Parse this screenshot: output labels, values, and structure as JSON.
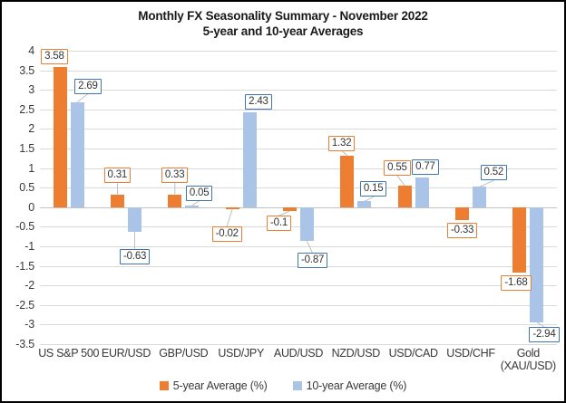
{
  "chart_data": {
    "type": "bar",
    "title": "Monthly FX Seasonality Summary - November 2022",
    "subtitle": "5-year and 10-year Averages",
    "categories": [
      "US S&P 500",
      "EUR/USD",
      "GBP/USD",
      "USD/JPY",
      "AUD/USD",
      "NZD/USD",
      "USD/CAD",
      "USD/CHF",
      "Gold (XAU/USD)"
    ],
    "series": [
      {
        "name": "5-year Average (%)",
        "color": "#ED7D31",
        "label_border_color": "#ED7D31",
        "values": [
          3.58,
          0.31,
          0.33,
          -0.02,
          -0.1,
          1.32,
          0.55,
          -0.33,
          -1.68
        ],
        "labels": [
          "3.58",
          "0.31",
          "0.33",
          "-0.02",
          "-0.1",
          "1.32",
          "0.55",
          "-0.33",
          "-1.68"
        ],
        "label_offsets": [
          {
            "dx": -6,
            "dy": 0,
            "leader": false
          },
          {
            "dx": 0,
            "dy": -10,
            "leader": true
          },
          {
            "dx": 0,
            "dy": -10,
            "leader": true
          },
          {
            "dx": -6,
            "dy": 16,
            "leader": true
          },
          {
            "dx": -12,
            "dy": 2,
            "leader": true
          },
          {
            "dx": -6,
            "dy": -2,
            "leader": true
          },
          {
            "dx": -8,
            "dy": -8,
            "leader": true
          },
          null,
          {
            "dx": -4,
            "dy": 0,
            "leader": false
          }
        ]
      },
      {
        "name": "10-year Average (%)",
        "color": "#A9C4E6",
        "label_border_color": "#3E76B5",
        "values": [
          2.69,
          -0.63,
          0.05,
          2.43,
          -0.87,
          0.15,
          0.77,
          0.52,
          -2.94
        ],
        "labels": [
          "2.69",
          "-0.63",
          "0.05",
          "2.43",
          "-0.87",
          "0.15",
          "0.77",
          "0.52",
          "-2.94"
        ],
        "label_offsets": [
          {
            "dx": 12,
            "dy": -6,
            "leader": true
          },
          {
            "dx": 0,
            "dy": 16,
            "leader": true
          },
          {
            "dx": 8,
            "dy": -2,
            "leader": true
          },
          {
            "dx": 10,
            "dy": 0,
            "leader": false
          },
          {
            "dx": 6,
            "dy": 10,
            "leader": true
          },
          {
            "dx": 10,
            "dy": -2,
            "leader": true
          },
          {
            "dx": 4,
            "dy": 0,
            "leader": false
          },
          {
            "dx": 16,
            "dy": -4,
            "leader": true
          },
          {
            "dx": 8,
            "dy": 2,
            "leader": true
          }
        ]
      }
    ],
    "ylim": [
      -3.5,
      4
    ],
    "ytick_step": 0.5,
    "grid": true,
    "legend_position": "bottom",
    "gridline_color": "#D9D9D9",
    "zero_line_color": "#C2C2C2",
    "leader_line_color": "#BFBFBF",
    "label_text_color": "#333333",
    "background_color": "#FFFFFF",
    "frame_border_color": "#000000"
  }
}
